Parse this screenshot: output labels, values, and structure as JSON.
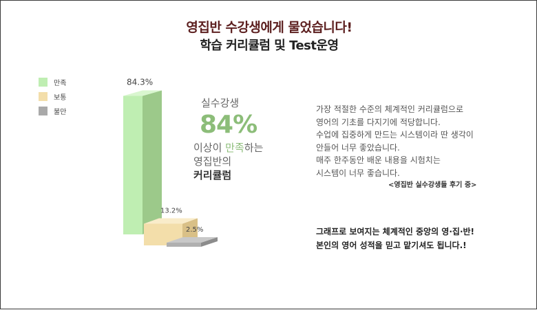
{
  "header": {
    "title": "영집반 수강생에게 물었습니다!",
    "subtitle": "학습 커리큘럼 및 Test운영"
  },
  "legend": [
    {
      "label": "만족",
      "color": "#bfeeb2"
    },
    {
      "label": "보통",
      "color": "#f3deaa"
    },
    {
      "label": "불만",
      "color": "#a9a9a9"
    }
  ],
  "chart_data": {
    "type": "bar",
    "categories": [
      "만족",
      "보통",
      "불만"
    ],
    "values": [
      84.3,
      13.2,
      2.5
    ],
    "value_labels": [
      "84.3%",
      "13.2%",
      "2.5%"
    ],
    "colors": {
      "만족": {
        "front": "#bfeeb2",
        "side": "#9cc98a",
        "top": "#d9f6cf"
      },
      "보통": {
        "front": "#f3deaa",
        "side": "#d9c087",
        "top": "#f9ecca"
      },
      "불만": {
        "front": "#b0b0b0",
        "side": "#8c8c8c",
        "top": "#c8c8c8"
      }
    },
    "ylim": [
      0,
      100
    ],
    "legend_position": "top-left",
    "grid": false
  },
  "callout": {
    "label": "실수강생",
    "percent": "84%",
    "line1_pre": "이상이 ",
    "line1_hl": "만족",
    "line1_post": "하는",
    "line2": "영집반의",
    "line3": "커리큘럼"
  },
  "review": {
    "lines": [
      "가장 적절한 수준의 체계적인 커리큘럼으로",
      "영어의 기초를 다지기에 적당합니다.",
      "수업에 집중하게 만드는 시스템이라 딴 생각이",
      "안들어 너무 좋았습니다.",
      "매주 한주동안 배운 내용을 시험치는",
      "시스템이 너무 좋습니다."
    ],
    "source": "<영집반 실수강생들 후기 중>"
  },
  "closing": {
    "line1": "그래프로 보여지는 체계적인 중앙의 영·집·반!",
    "line2": "본인의 영어 성적을 믿고 맡기셔도 됩니다.!"
  }
}
